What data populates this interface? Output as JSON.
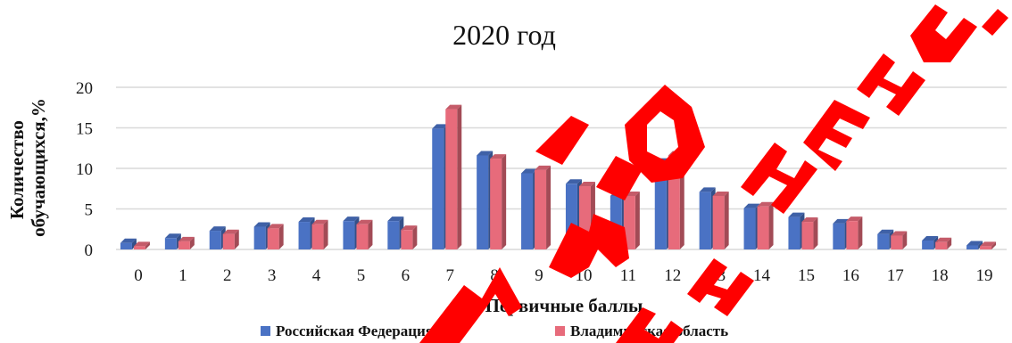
{
  "chart_data": {
    "type": "bar",
    "title": "2020 год",
    "xlabel": "Первичные баллы",
    "ylabel": "Количество обучающихся,%",
    "ylim": [
      0,
      20
    ],
    "yticks": [
      0,
      5,
      10,
      15,
      20
    ],
    "grid": true,
    "legend_position": "bottom",
    "categories": [
      "0",
      "1",
      "2",
      "3",
      "4",
      "5",
      "6",
      "7",
      "8",
      "9",
      "10",
      "11",
      "12",
      "13",
      "14",
      "15",
      "16",
      "17",
      "18",
      "19"
    ],
    "series": [
      {
        "name": "Российская Федерация",
        "color": "#4a72c4",
        "values": [
          0.8,
          1.4,
          2.3,
          2.8,
          3.4,
          3.5,
          3.5,
          14.9,
          11.6,
          9.4,
          8.1,
          6.6,
          10.7,
          7.1,
          5.1,
          4.0,
          3.2,
          1.9,
          1.1,
          0.5
        ]
      },
      {
        "name": "Владимирская область",
        "color": "#e76b7b",
        "values": [
          0.4,
          1.0,
          1.9,
          2.6,
          3.1,
          3.1,
          2.4,
          17.3,
          11.2,
          9.8,
          7.8,
          6.6,
          11.6,
          6.6,
          5.3,
          3.4,
          3.5,
          1.7,
          0.9,
          0.4
        ]
      }
    ]
  },
  "watermark": {
    "text": "ДАННЫЕ ОБОБЩЕНЫ",
    "color": "#ff0000"
  }
}
